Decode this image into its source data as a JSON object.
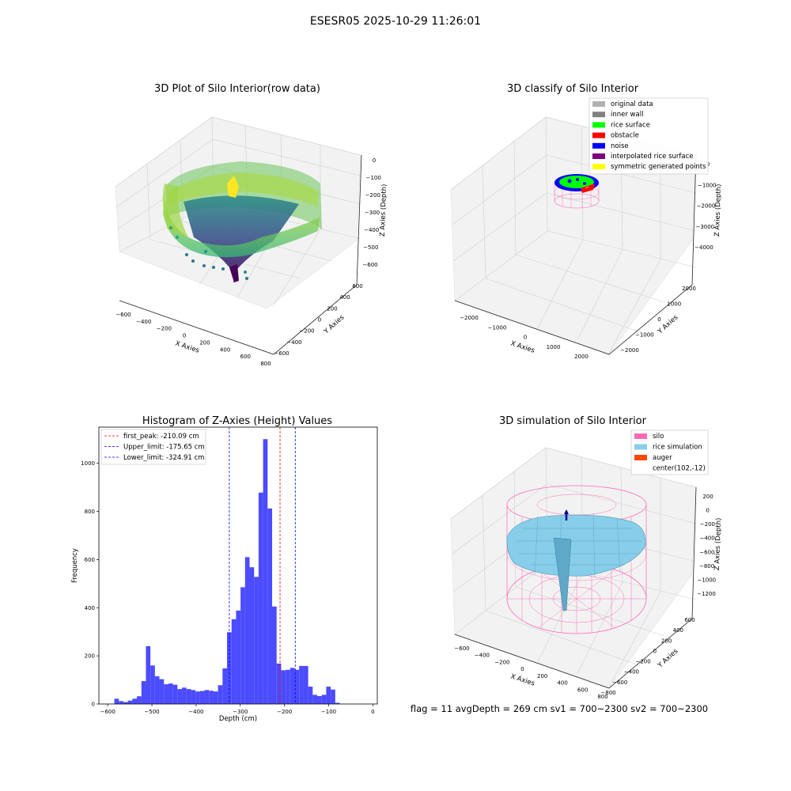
{
  "suptitle": "ESESR05 2025-10-29 11:26:01",
  "status_text": "flag = 11   avgDepth = 269 cm  sv1 = 700~2300  sv2 = 700~2300",
  "colors": {
    "hist_bar": "#4b4bff",
    "first_peak_line": "#ff0000",
    "limit_lines": "#0000ff",
    "rice_surface": "#00ff00",
    "noise": "#0000ff",
    "obstacle": "#ff0000",
    "silo_wire": "#ff69b4",
    "rice_sim": "#87ceeb",
    "auger": "#ff4500"
  },
  "chart_data": [
    {
      "type": "scatter",
      "title": "3D Plot of Silo Interior(row data)",
      "xlabel": "X Axies",
      "ylabel": "Y Axies",
      "zlabel": "Z Axies (Depth)",
      "x_ticks": [
        "−600",
        "−400",
        "−200",
        "0",
        "200",
        "400",
        "600",
        "800"
      ],
      "y_ticks": [
        "600",
        "400",
        "200",
        "0",
        "−200",
        "−400",
        "−600"
      ],
      "z_ticks": [
        "0",
        "−100",
        "−200",
        "−300",
        "−400",
        "−500",
        "−600"
      ],
      "colormap": "viridis"
    },
    {
      "type": "scatter",
      "title": "3D classify of Silo Interior",
      "xlabel": "X Axies",
      "ylabel": "Y Axies",
      "zlabel": "Z Axies (Depth)",
      "x_ticks": [
        "−2000",
        "−1000",
        "0",
        "1000",
        "2000"
      ],
      "y_ticks": [
        "2000",
        "1000",
        "0",
        "−1000",
        "−2000"
      ],
      "z_ticks": [
        "0",
        "−1000",
        "−2000",
        "−3000",
        "−4000"
      ],
      "legend_position": "top-right",
      "legend": [
        {
          "label": "original data",
          "color": "#b0b0b0"
        },
        {
          "label": "inner wall",
          "color": "#808080"
        },
        {
          "label": "rice surface",
          "color": "#00ff00"
        },
        {
          "label": "obstacle",
          "color": "#ff0000"
        },
        {
          "label": "noise",
          "color": "#0000ff"
        },
        {
          "label": "interpolated rice surface",
          "color": "#800080"
        },
        {
          "label": "symmetric generated points",
          "color": "#ffff00"
        }
      ]
    },
    {
      "type": "bar",
      "title": "Histogram of Z-Axies (Height) Values",
      "xlabel": "Depth (cm)",
      "ylabel": "Frequency",
      "xlim": [
        -620,
        10
      ],
      "ylim": [
        0,
        1150
      ],
      "x_ticks": [
        -600,
        -500,
        -400,
        -300,
        -200,
        -100,
        0
      ],
      "x_tick_labels": [
        "−600",
        "−500",
        "−400",
        "−300",
        "−200",
        "−100",
        "0"
      ],
      "y_ticks": [
        0,
        200,
        400,
        600,
        800,
        1000
      ],
      "bin_start": -585,
      "bin_width": 10.2,
      "values": [
        22,
        12,
        8,
        14,
        22,
        32,
        95,
        240,
        160,
        115,
        103,
        82,
        85,
        80,
        62,
        68,
        62,
        58,
        52,
        54,
        58,
        55,
        52,
        78,
        148,
        298,
        352,
        388,
        485,
        610,
        568,
        528,
        878,
        1100,
        812,
        405,
        168,
        140,
        142,
        150,
        142,
        158,
        158,
        72,
        38,
        33,
        38,
        72,
        60,
        5
      ],
      "vlines": [
        {
          "label": "first_peak: -210.09 cm",
          "x": -210.09,
          "color": "#ff0000"
        },
        {
          "label": "Upper_limit: -175.65 cm",
          "x": -175.65,
          "color": "#0000ff"
        },
        {
          "label": "Lower_limit: -324.91 cm",
          "x": -324.91,
          "color": "#0000ff"
        }
      ],
      "legend_position": "top-left"
    },
    {
      "type": "scatter",
      "title": "3D simulation of Silo Interior",
      "xlabel": "X Axies",
      "ylabel": "Y Axies",
      "zlabel": "Z Axies (Depth)",
      "x_ticks": [
        "−600",
        "−400",
        "−200",
        "0",
        "200",
        "400",
        "600",
        "800"
      ],
      "y_ticks": [
        "600",
        "400",
        "200",
        "0",
        "−200",
        "−400",
        "−600",
        "−800"
      ],
      "z_ticks": [
        "200",
        "0",
        "−200",
        "−400",
        "−600",
        "−800",
        "−1000",
        "−1200"
      ],
      "legend_position": "top-right",
      "legend": [
        {
          "label": "silo",
          "color": "#ff69b4"
        },
        {
          "label": "rice simulation",
          "color": "#87ceeb"
        },
        {
          "label": "auger",
          "color": "#ff4500"
        },
        {
          "label": "center(102,-12)",
          "color": ""
        }
      ]
    }
  ]
}
